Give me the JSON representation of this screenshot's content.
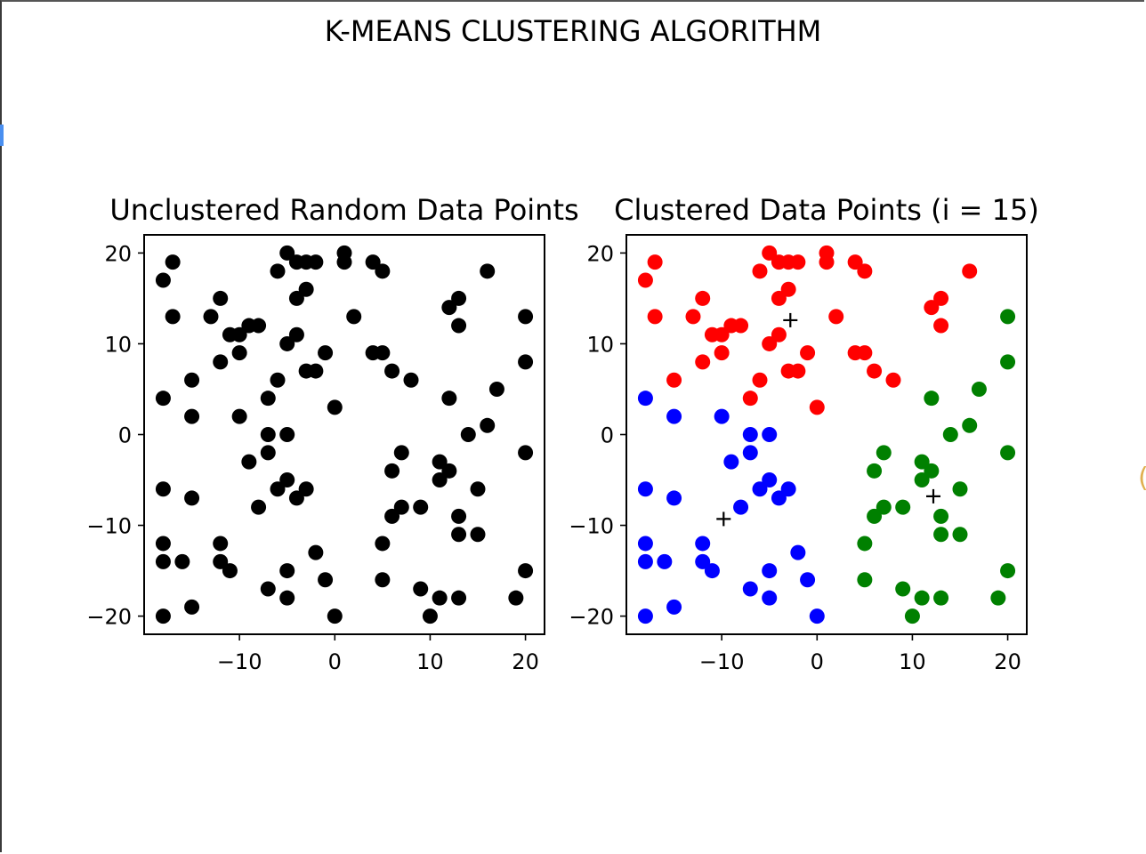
{
  "figure": {
    "suptitle": "K-MEANS CLUSTERING ALGORITHM"
  },
  "chart_data": [
    {
      "type": "scatter",
      "title": "Unclustered Random Data Points",
      "xlabel": "",
      "ylabel": "",
      "xlim": [
        -20,
        22
      ],
      "ylim": [
        -22,
        22
      ],
      "xticks": [
        -10,
        0,
        10,
        20
      ],
      "yticks": [
        -20,
        -10,
        0,
        10,
        20
      ],
      "xtick_labels": [
        "−10",
        "0",
        "10",
        "20"
      ],
      "ytick_labels": [
        "−20",
        "−10",
        "0",
        "10",
        "20"
      ],
      "grid": false,
      "point_color": "#000000",
      "points": [
        [
          -18,
          17
        ],
        [
          -17,
          19
        ],
        [
          -17,
          13
        ],
        [
          -13,
          13
        ],
        [
          -12,
          15
        ],
        [
          -12,
          8
        ],
        [
          -11,
          11
        ],
        [
          -10,
          11
        ],
        [
          -10,
          9
        ],
        [
          -9,
          12
        ],
        [
          -8,
          12
        ],
        [
          -6,
          18
        ],
        [
          -5,
          20
        ],
        [
          -4,
          19
        ],
        [
          -3,
          19
        ],
        [
          -2,
          19
        ],
        [
          -5,
          10
        ],
        [
          -4,
          11
        ],
        [
          -4,
          15
        ],
        [
          -3,
          16
        ],
        [
          -3,
          7
        ],
        [
          -2,
          7
        ],
        [
          -1,
          9
        ],
        [
          -6,
          6
        ],
        [
          1,
          20
        ],
        [
          1,
          19
        ],
        [
          2,
          13
        ],
        [
          4,
          19
        ],
        [
          5,
          18
        ],
        [
          4,
          9
        ],
        [
          5,
          9
        ],
        [
          6,
          7
        ],
        [
          8,
          6
        ],
        [
          16,
          18
        ],
        [
          13,
          15
        ],
        [
          12,
          14
        ],
        [
          13,
          12
        ],
        [
          20,
          13
        ],
        [
          20,
          8
        ],
        [
          -18,
          4
        ],
        [
          -15,
          6
        ],
        [
          -15,
          2
        ],
        [
          -10,
          2
        ],
        [
          -7,
          4
        ],
        [
          -7,
          0
        ],
        [
          -5,
          0
        ],
        [
          -7,
          -2
        ],
        [
          -9,
          -3
        ],
        [
          -6,
          -6
        ],
        [
          -5,
          -5
        ],
        [
          -4,
          -7
        ],
        [
          -3,
          -6
        ],
        [
          -8,
          -8
        ],
        [
          -18,
          -6
        ],
        [
          -15,
          -7
        ],
        [
          -18,
          -12
        ],
        [
          -18,
          -14
        ],
        [
          -16,
          -14
        ],
        [
          -12,
          -12
        ],
        [
          -12,
          -14
        ],
        [
          -11,
          -15
        ],
        [
          -15,
          -19
        ],
        [
          -18,
          -20
        ],
        [
          -7,
          -17
        ],
        [
          -5,
          -15
        ],
        [
          -5,
          -18
        ],
        [
          -2,
          -13
        ],
        [
          -1,
          -16
        ],
        [
          0,
          -20
        ],
        [
          0,
          3
        ],
        [
          12,
          4
        ],
        [
          17,
          5
        ],
        [
          14,
          0
        ],
        [
          16,
          1
        ],
        [
          20,
          -2
        ],
        [
          7,
          -2
        ],
        [
          6,
          -4
        ],
        [
          11,
          -3
        ],
        [
          12,
          -4
        ],
        [
          11,
          -5
        ],
        [
          15,
          -6
        ],
        [
          7,
          -8
        ],
        [
          6,
          -9
        ],
        [
          9,
          -8
        ],
        [
          13,
          -9
        ],
        [
          13,
          -11
        ],
        [
          15,
          -11
        ],
        [
          5,
          -12
        ],
        [
          5,
          -16
        ],
        [
          9,
          -17
        ],
        [
          11,
          -18
        ],
        [
          13,
          -18
        ],
        [
          10,
          -20
        ],
        [
          19,
          -18
        ],
        [
          20,
          -15
        ]
      ]
    },
    {
      "type": "scatter",
      "title": "Clustered Data Points (i = 15)",
      "xlabel": "",
      "ylabel": "",
      "xlim": [
        -20,
        22
      ],
      "ylim": [
        -22,
        22
      ],
      "xticks": [
        -10,
        0,
        10,
        20
      ],
      "yticks": [
        -20,
        -10,
        0,
        10,
        20
      ],
      "xtick_labels": [
        "−10",
        "0",
        "10",
        "20"
      ],
      "ytick_labels": [
        "−20",
        "−10",
        "0",
        "10",
        "20"
      ],
      "grid": false,
      "series": [
        {
          "color": "#ff0000",
          "points": [
            [
              -18,
              17
            ],
            [
              -17,
              19
            ],
            [
              -17,
              13
            ],
            [
              -13,
              13
            ],
            [
              -12,
              15
            ],
            [
              -12,
              8
            ],
            [
              -11,
              11
            ],
            [
              -10,
              11
            ],
            [
              -10,
              9
            ],
            [
              -9,
              12
            ],
            [
              -8,
              12
            ],
            [
              -6,
              18
            ],
            [
              -5,
              20
            ],
            [
              -4,
              19
            ],
            [
              -3,
              19
            ],
            [
              -2,
              19
            ],
            [
              -5,
              10
            ],
            [
              -4,
              11
            ],
            [
              -4,
              15
            ],
            [
              -3,
              16
            ],
            [
              -3,
              7
            ],
            [
              -2,
              7
            ],
            [
              -1,
              9
            ],
            [
              -6,
              6
            ],
            [
              1,
              20
            ],
            [
              1,
              19
            ],
            [
              2,
              13
            ],
            [
              4,
              19
            ],
            [
              5,
              18
            ],
            [
              4,
              9
            ],
            [
              5,
              9
            ],
            [
              6,
              7
            ],
            [
              8,
              6
            ],
            [
              16,
              18
            ],
            [
              13,
              15
            ],
            [
              12,
              14
            ],
            [
              13,
              12
            ],
            [
              -15,
              6
            ],
            [
              -7,
              4
            ],
            [
              0,
              3
            ]
          ]
        },
        {
          "color": "#0000ff",
          "points": [
            [
              -18,
              4
            ],
            [
              -15,
              2
            ],
            [
              -10,
              2
            ],
            [
              -7,
              0
            ],
            [
              -5,
              0
            ],
            [
              -7,
              -2
            ],
            [
              -9,
              -3
            ],
            [
              -6,
              -6
            ],
            [
              -5,
              -5
            ],
            [
              -4,
              -7
            ],
            [
              -3,
              -6
            ],
            [
              -8,
              -8
            ],
            [
              -18,
              -6
            ],
            [
              -15,
              -7
            ],
            [
              -18,
              -12
            ],
            [
              -18,
              -14
            ],
            [
              -16,
              -14
            ],
            [
              -12,
              -12
            ],
            [
              -12,
              -14
            ],
            [
              -11,
              -15
            ],
            [
              -15,
              -19
            ],
            [
              -18,
              -20
            ],
            [
              -7,
              -17
            ],
            [
              -5,
              -15
            ],
            [
              -5,
              -18
            ],
            [
              -2,
              -13
            ],
            [
              -1,
              -16
            ],
            [
              0,
              -20
            ]
          ]
        },
        {
          "color": "#008000",
          "points": [
            [
              20,
              13
            ],
            [
              20,
              8
            ],
            [
              12,
              4
            ],
            [
              17,
              5
            ],
            [
              14,
              0
            ],
            [
              16,
              1
            ],
            [
              20,
              -2
            ],
            [
              7,
              -2
            ],
            [
              6,
              -4
            ],
            [
              11,
              -3
            ],
            [
              12,
              -4
            ],
            [
              11,
              -5
            ],
            [
              15,
              -6
            ],
            [
              7,
              -8
            ],
            [
              6,
              -9
            ],
            [
              9,
              -8
            ],
            [
              13,
              -9
            ],
            [
              13,
              -11
            ],
            [
              15,
              -11
            ],
            [
              5,
              -12
            ],
            [
              5,
              -16
            ],
            [
              9,
              -17
            ],
            [
              11,
              -18
            ],
            [
              13,
              -18
            ],
            [
              10,
              -20
            ],
            [
              19,
              -18
            ],
            [
              20,
              -15
            ]
          ]
        }
      ],
      "centroids": {
        "marker": "+",
        "color": "#000000",
        "points": [
          [
            -2.8,
            12.6
          ],
          [
            -9.8,
            -9.3
          ],
          [
            12.2,
            -6.8
          ]
        ]
      }
    }
  ]
}
